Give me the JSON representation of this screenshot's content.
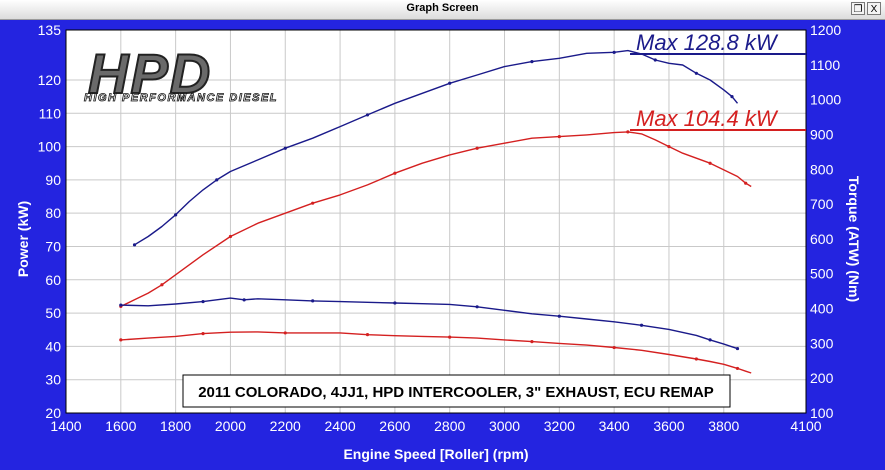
{
  "window": {
    "title": "Graph Screen",
    "restore_glyph": "❐",
    "close_glyph": "X"
  },
  "colors": {
    "background": "#2424e0",
    "plot_bg": "#ffffff",
    "grid": "#c9c9c9",
    "power_series": "#d42020",
    "power_series_dark": "#1a1a8a",
    "text_light": "#ffffff"
  },
  "logo": {
    "mark": "HPD",
    "tagline": "HIGH PERFORMANCE DIESEL"
  },
  "chart_data": {
    "type": "line",
    "xlabel": "Engine Speed [Roller] (rpm)",
    "ylabel": "Power (kW)",
    "y2label": "Torque (ATW) (Nm)",
    "xlim": [
      1400,
      4100
    ],
    "ylim": [
      20,
      135
    ],
    "y2lim": [
      100,
      1200
    ],
    "x_ticks": [
      "1400",
      "1600",
      "1800",
      "2000",
      "2200",
      "2400",
      "2600",
      "2800",
      "3000",
      "3200",
      "3400",
      "3600",
      "3800",
      "4100"
    ],
    "y_ticks": [
      "135",
      "120",
      "110",
      "100",
      "90",
      "80",
      "70",
      "60",
      "50",
      "40",
      "30",
      "20"
    ],
    "y2_ticks": [
      "1200",
      "1100",
      "1000",
      "900",
      "800",
      "700",
      "600",
      "500",
      "400",
      "300",
      "200",
      "100"
    ],
    "grid": true,
    "annotations": {
      "max_blue": "Max 128.8 kW",
      "max_red": "Max 104.4 kW",
      "note": "2011 COLORADO, 4JJ1, HPD INTERCOOLER, 3\" EXHAUST, ECU REMAP"
    },
    "series": [
      {
        "axis": "power",
        "color": "#1a1a8a",
        "x": [
          1650,
          1700,
          1750,
          1800,
          1850,
          1900,
          1950,
          2000,
          2100,
          2200,
          2300,
          2400,
          2500,
          2600,
          2700,
          2800,
          2900,
          3000,
          3100,
          3200,
          3300,
          3400,
          3450,
          3500,
          3550,
          3600,
          3650,
          3700,
          3750,
          3800,
          3830,
          3850
        ],
        "y": [
          70.5,
          73,
          76,
          79.5,
          83.5,
          87,
          90,
          92.5,
          96,
          99.5,
          102.5,
          106,
          109.5,
          113,
          116,
          119,
          121.5,
          124,
          125.5,
          126.5,
          128,
          128.3,
          128.8,
          127.8,
          126,
          125,
          124.5,
          122,
          120,
          117,
          115,
          113
        ]
      },
      {
        "axis": "power",
        "color": "#d42020",
        "x": [
          1600,
          1650,
          1700,
          1750,
          1800,
          1900,
          2000,
          2100,
          2200,
          2300,
          2400,
          2500,
          2600,
          2700,
          2800,
          2900,
          3000,
          3100,
          3200,
          3300,
          3400,
          3450,
          3500,
          3550,
          3600,
          3650,
          3700,
          3750,
          3800,
          3850,
          3880,
          3900
        ],
        "y": [
          52,
          54,
          56,
          58.5,
          61.5,
          67.5,
          73,
          77,
          80,
          83,
          85.5,
          88.5,
          92,
          95,
          97.5,
          99.5,
          101,
          102.5,
          103,
          103.5,
          104.2,
          104.4,
          103.8,
          102,
          100,
          98,
          96.5,
          95,
          93,
          91,
          89,
          88
        ]
      },
      {
        "axis": "torque",
        "color": "#1a1a8a",
        "x": [
          1600,
          1700,
          1800,
          1900,
          1950,
          2000,
          2050,
          2100,
          2200,
          2300,
          2400,
          2500,
          2600,
          2700,
          2800,
          2900,
          3000,
          3100,
          3200,
          3300,
          3400,
          3500,
          3600,
          3700,
          3750,
          3800,
          3830,
          3850
        ],
        "y": [
          410,
          408,
          413,
          420,
          425,
          430,
          425,
          428,
          425,
          422,
          420,
          418,
          416,
          414,
          412,
          405,
          395,
          385,
          378,
          370,
          362,
          352,
          340,
          323,
          310,
          298,
          290,
          285
        ]
      },
      {
        "axis": "torque",
        "color": "#d42020",
        "x": [
          1600,
          1700,
          1800,
          1900,
          2000,
          2100,
          2200,
          2300,
          2400,
          2500,
          2600,
          2700,
          2800,
          2900,
          3000,
          3100,
          3200,
          3300,
          3400,
          3500,
          3600,
          3700,
          3750,
          3800,
          3850,
          3880,
          3900
        ],
        "y": [
          310,
          315,
          320,
          328,
          332,
          333,
          330,
          330,
          330,
          325,
          322,
          320,
          318,
          315,
          310,
          305,
          300,
          295,
          288,
          280,
          268,
          255,
          248,
          240,
          228,
          220,
          215
        ]
      }
    ]
  }
}
